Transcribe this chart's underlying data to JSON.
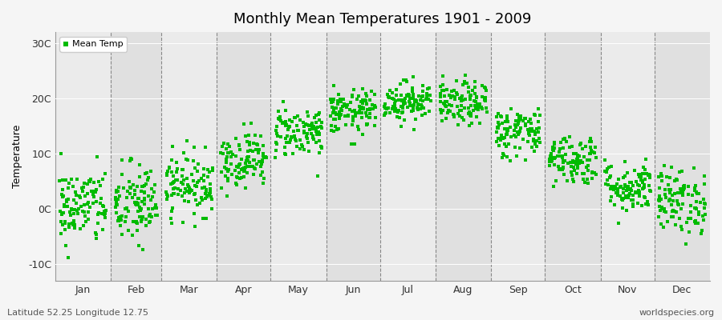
{
  "title": "Monthly Mean Temperatures 1901 - 2009",
  "ylabel": "Temperature",
  "xlabel_months": [
    "Jan",
    "Feb",
    "Mar",
    "Apr",
    "May",
    "Jun",
    "Jul",
    "Aug",
    "Sep",
    "Oct",
    "Nov",
    "Dec"
  ],
  "yticks": [
    -10,
    0,
    10,
    20,
    30
  ],
  "ytick_labels": [
    "-10C",
    "0C",
    "10C",
    "20C",
    "30C"
  ],
  "ylim": [
    -13,
    32
  ],
  "xlim": [
    0,
    365
  ],
  "dot_color": "#00BB00",
  "bg_color": "#f5f5f5",
  "band_light": "#ebebeb",
  "band_dark": "#e0e0e0",
  "footer_left": "Latitude 52.25 Longitude 12.75",
  "footer_right": "worldspecies.org",
  "legend_label": "Mean Temp",
  "seed": 42,
  "monthly_means": [
    0.5,
    0.8,
    4.5,
    9.0,
    14.0,
    17.5,
    19.5,
    19.0,
    14.0,
    9.0,
    4.0,
    1.5
  ],
  "monthly_stds": [
    3.5,
    3.8,
    2.8,
    2.5,
    2.3,
    2.0,
    1.8,
    2.0,
    2.3,
    2.3,
    2.3,
    3.0
  ],
  "n_years": 109,
  "month_days": [
    31,
    28,
    31,
    30,
    31,
    30,
    31,
    31,
    30,
    31,
    30,
    31
  ]
}
